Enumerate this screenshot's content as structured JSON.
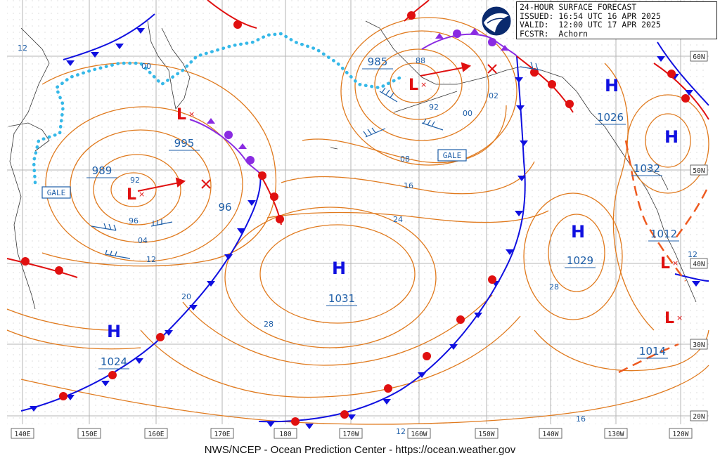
{
  "header": {
    "title": "24-HOUR SURFACE FORECAST",
    "issued": "ISSUED: 16:54 UTC 16 APR 2025",
    "valid": "VALID:  12:00 UTC 17 APR 2025",
    "forecaster": "FCSTR:  Achorn"
  },
  "footer": "NWS/NCEP - Ocean Prediction Center - https://ocean.weather.gov",
  "logo": "noaa-logo",
  "colors": {
    "isobar": "#e07a1e",
    "label_blue": "#1f5fa8",
    "cold_front": "#1010e0",
    "warm_front": "#e01010",
    "occluded_front": "#8a2be2",
    "ice_edge": "#35b8e8",
    "low": "#e01010",
    "high": "#1010e0"
  },
  "longitude_labels": [
    "140E",
    "150E",
    "160E",
    "170E",
    "180",
    "170W",
    "160W",
    "150W",
    "140W",
    "130W",
    "120W"
  ],
  "latitude_labels": [
    "60N",
    "50N",
    "40N",
    "30N",
    "20N"
  ],
  "highs": [
    {
      "label": "H",
      "pressure": "1026"
    },
    {
      "label": "H",
      "pressure": "1032"
    },
    {
      "label": "H",
      "pressure": "1029"
    },
    {
      "label": "H",
      "pressure": "1031"
    },
    {
      "label": "H",
      "pressure": "1024"
    }
  ],
  "lows": [
    {
      "label": "L",
      "pressure": "985"
    },
    {
      "label": "L",
      "pressure": "995"
    },
    {
      "label": "L",
      "pressure": "989"
    },
    {
      "label": "L",
      "pressure": "1012"
    },
    {
      "label": "L",
      "pressure": "1014"
    }
  ],
  "warnings": [
    "GALE",
    "GALE"
  ],
  "isobar_labels": [
    "12",
    "00",
    "88",
    "92",
    "00",
    "02",
    "08",
    "16",
    "24",
    "92",
    "96",
    "04",
    "12",
    "96",
    "20",
    "28",
    "28",
    "12",
    "16",
    "12"
  ]
}
